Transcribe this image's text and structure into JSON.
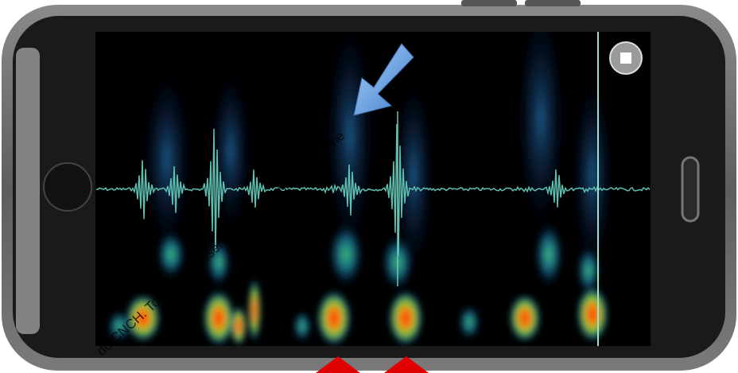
{
  "watermark": "du CNCH. Tous droits réservés. Toute reproduction me"
}
